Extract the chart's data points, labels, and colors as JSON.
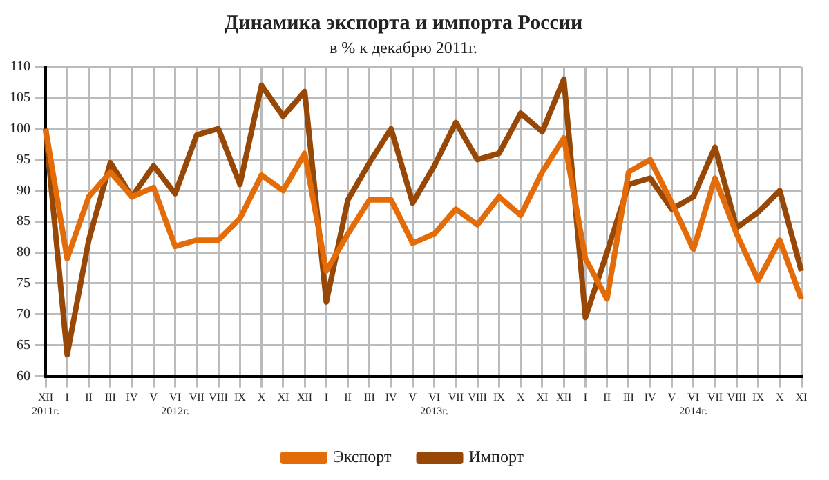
{
  "chart_data": {
    "type": "line",
    "title": "Динамика экспорта и импорта России",
    "subtitle": "в % к декабрю 2011г.",
    "categories": [
      "XII\n2011г.",
      "I",
      "II",
      "III",
      "IV",
      "V",
      "VI\n2012г.",
      "VII",
      "VIII",
      "IX",
      "X",
      "XI",
      "XII",
      "I",
      "II",
      "III",
      "IV",
      "V",
      "VI\n2013г.",
      "VII",
      "VIII",
      "IX",
      "X",
      "XI",
      "XII",
      "I",
      "II",
      "III",
      "IV",
      "V",
      "VI\n2014г.",
      "VII",
      "VIII",
      "IX",
      "X",
      "XI"
    ],
    "series": [
      {
        "name": "Экспорт",
        "color": "#e36c09",
        "values": [
          100,
          79,
          89,
          93,
          89,
          90.5,
          81,
          82,
          82,
          85.5,
          92.5,
          90,
          96,
          77,
          83,
          88.5,
          88.5,
          81.5,
          83,
          87,
          84.5,
          89,
          86,
          93,
          98.5,
          79,
          72.5,
          93,
          95,
          88,
          80.5,
          92,
          83,
          75.5,
          82,
          72.5
        ]
      },
      {
        "name": "Импорт",
        "color": "#974706",
        "values": [
          100,
          63.5,
          82,
          94.5,
          89,
          94,
          89.5,
          99,
          100,
          91,
          107,
          102,
          106,
          72,
          88.5,
          94.5,
          100,
          88,
          94,
          101,
          95,
          96,
          102.5,
          99.5,
          108,
          69.5,
          80,
          91,
          92,
          87,
          89,
          97,
          84,
          86.5,
          90,
          77
        ]
      }
    ],
    "ylim": [
      60,
      110
    ],
    "yticks": [
      60,
      65,
      70,
      75,
      80,
      85,
      90,
      95,
      100,
      105,
      110
    ],
    "grid": true,
    "legend": "bottom",
    "marker": "none",
    "line_style": "solid"
  }
}
